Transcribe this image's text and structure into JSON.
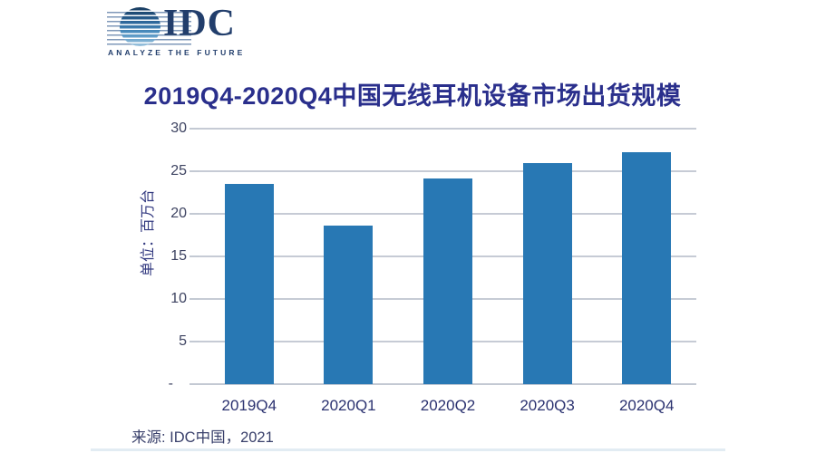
{
  "logo": {
    "brand": "IDC",
    "tagline": "ANALYZE THE FUTURE"
  },
  "chart_title": "2019Q4-2020Q4中国无线耳机设备市场出货规模",
  "y_axis_unit": "单位：百万台",
  "source_note": "来源: IDC中国，2021",
  "chart_data": {
    "type": "bar",
    "title": "2019Q4-2020Q4中国无线耳机设备市场出货规模",
    "categories": [
      "2019Q4",
      "2020Q1",
      "2020Q2",
      "2020Q3",
      "2020Q4"
    ],
    "values": [
      23.5,
      18.6,
      24.2,
      26.0,
      27.2
    ],
    "xlabel": "",
    "ylabel": "单位：百万台",
    "ylim": [
      0,
      30
    ],
    "ytick_step": 5,
    "yticks": {
      "values": [
        30,
        25,
        20,
        15,
        10,
        5,
        0
      ],
      "labels": [
        "30",
        "25",
        "20",
        "15",
        "10",
        "5",
        "-"
      ]
    },
    "grid": true,
    "legend": "none",
    "bar_color": "#2878B4"
  },
  "colors": {
    "bar": "#2878B4",
    "title": "#2A2F8C",
    "y_label": "#3D4361",
    "x_label": "#2B3270",
    "gridline": "#C6CBD5",
    "logo_navy": "#223E6C",
    "source_text": "#39406B"
  }
}
